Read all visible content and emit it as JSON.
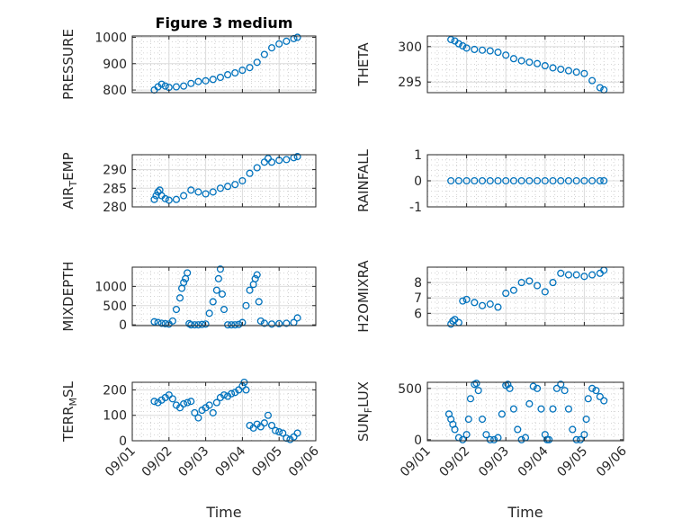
{
  "chart_data": [
    {
      "type": "scatter",
      "title": "Figure 3 medium",
      "ylabel": "PRESSURE",
      "ylim": [
        790,
        1005
      ],
      "yticks": [
        800,
        900,
        1000
      ],
      "ytick_labels": [
        "800",
        "900",
        "1000"
      ],
      "x": [
        1.6,
        1.7,
        1.8,
        1.9,
        2.0,
        2.2,
        2.4,
        2.6,
        2.8,
        3.0,
        3.2,
        3.4,
        3.6,
        3.8,
        4.0,
        4.2,
        4.4,
        4.6,
        4.8,
        5.0,
        5.2,
        5.4,
        5.5
      ],
      "y": [
        800,
        812,
        822,
        815,
        810,
        812,
        815,
        825,
        832,
        835,
        840,
        848,
        858,
        865,
        875,
        885,
        905,
        935,
        960,
        975,
        985,
        995,
        1000
      ],
      "grid": true
    },
    {
      "type": "scatter",
      "ylabel": "THETA",
      "ylim": [
        293.5,
        301.5
      ],
      "yticks": [
        295,
        300
      ],
      "ytick_labels": [
        "295",
        "300"
      ],
      "x": [
        1.6,
        1.7,
        1.8,
        1.9,
        2.0,
        2.2,
        2.4,
        2.6,
        2.8,
        3.0,
        3.2,
        3.4,
        3.6,
        3.8,
        4.0,
        4.2,
        4.4,
        4.6,
        4.8,
        5.0,
        5.2,
        5.4,
        5.5
      ],
      "y": [
        301,
        300.8,
        300.4,
        300.1,
        299.8,
        299.6,
        299.5,
        299.4,
        299.2,
        298.8,
        298.3,
        298.0,
        297.8,
        297.6,
        297.3,
        297.0,
        296.8,
        296.6,
        296.4,
        296.2,
        295.2,
        294.2,
        293.9
      ],
      "grid": true
    },
    {
      "type": "scatter",
      "ylabel_main": "AIR",
      "ylabel_sub": "T",
      "ylabel_rest": "EMP",
      "ylim": [
        280,
        294
      ],
      "yticks": [
        280,
        285,
        290
      ],
      "ytick_labels": [
        "280",
        "285",
        "290"
      ],
      "x": [
        1.6,
        1.65,
        1.7,
        1.75,
        1.8,
        1.9,
        2.0,
        2.2,
        2.4,
        2.6,
        2.8,
        3.0,
        3.2,
        3.4,
        3.6,
        3.8,
        4.0,
        4.2,
        4.4,
        4.6,
        4.7,
        4.8,
        5.0,
        5.2,
        5.4,
        5.5
      ],
      "y": [
        282,
        283,
        284,
        284.5,
        283,
        282.2,
        281.8,
        282,
        283,
        284.5,
        284,
        283.5,
        284,
        285,
        285.5,
        286,
        287,
        289,
        290.5,
        292,
        293,
        292,
        292.5,
        292.7,
        293.2,
        293.5
      ],
      "grid": true
    },
    {
      "type": "scatter",
      "ylabel": "RAINFALL",
      "ylim": [
        -1,
        1
      ],
      "yticks": [
        -1,
        0,
        1
      ],
      "ytick_labels": [
        "-1",
        "0",
        "1"
      ],
      "x": [
        1.6,
        1.8,
        2.0,
        2.2,
        2.4,
        2.6,
        2.8,
        3.0,
        3.2,
        3.4,
        3.6,
        3.8,
        4.0,
        4.2,
        4.4,
        4.6,
        4.8,
        5.0,
        5.2,
        5.4,
        5.5
      ],
      "y": [
        0,
        0,
        0,
        0,
        0,
        0,
        0,
        0,
        0,
        0,
        0,
        0,
        0,
        0,
        0,
        0,
        0,
        0,
        0,
        0,
        0
      ],
      "grid": true
    },
    {
      "type": "scatter",
      "ylabel": "MIXDEPTH",
      "ylim": [
        -20,
        1500
      ],
      "yticks": [
        0,
        500,
        1000
      ],
      "ytick_labels": [
        "0",
        "500",
        "1000"
      ],
      "x": [
        1.6,
        1.7,
        1.8,
        1.9,
        2.0,
        2.1,
        2.2,
        2.3,
        2.35,
        2.4,
        2.45,
        2.5,
        2.55,
        2.6,
        2.7,
        2.8,
        2.9,
        3.0,
        3.1,
        3.2,
        3.3,
        3.35,
        3.4,
        3.45,
        3.5,
        3.6,
        3.7,
        3.8,
        3.9,
        4.0,
        4.1,
        4.2,
        4.3,
        4.35,
        4.4,
        4.45,
        4.5,
        4.6,
        4.8,
        5.0,
        5.2,
        5.4,
        5.5
      ],
      "y": [
        80,
        60,
        40,
        30,
        20,
        100,
        400,
        700,
        950,
        1100,
        1200,
        1350,
        30,
        0,
        0,
        0,
        10,
        20,
        300,
        600,
        900,
        1200,
        1450,
        800,
        400,
        0,
        0,
        0,
        10,
        60,
        500,
        900,
        1050,
        1200,
        1300,
        600,
        100,
        40,
        20,
        30,
        40,
        60,
        180
      ],
      "grid": true
    },
    {
      "type": "scatter",
      "ylabel": "H2OMIXRA",
      "ylim": [
        5.2,
        9.0
      ],
      "yticks": [
        6,
        7,
        8
      ],
      "ytick_labels": [
        "6",
        "7",
        "8"
      ],
      "x": [
        1.6,
        1.65,
        1.7,
        1.8,
        1.9,
        2.0,
        2.2,
        2.4,
        2.6,
        2.8,
        3.0,
        3.2,
        3.4,
        3.6,
        3.8,
        4.0,
        4.2,
        4.4,
        4.6,
        4.8,
        5.0,
        5.2,
        5.4,
        5.5
      ],
      "y": [
        5.3,
        5.5,
        5.6,
        5.4,
        6.8,
        6.9,
        6.7,
        6.5,
        6.6,
        6.4,
        7.3,
        7.5,
        8.0,
        8.1,
        7.8,
        7.4,
        8.0,
        8.6,
        8.5,
        8.5,
        8.4,
        8.5,
        8.6,
        8.8
      ],
      "grid": true
    },
    {
      "type": "scatter",
      "ylabel_main": "TERR",
      "ylabel_sub": "M",
      "ylabel_rest": "SL",
      "ylim": [
        0,
        230
      ],
      "yticks": [
        0,
        100,
        200
      ],
      "ytick_labels": [
        "0",
        "100",
        "200"
      ],
      "x": [
        1.6,
        1.7,
        1.8,
        1.9,
        2.0,
        2.1,
        2.2,
        2.3,
        2.4,
        2.5,
        2.6,
        2.7,
        2.8,
        2.9,
        3.0,
        3.1,
        3.2,
        3.3,
        3.4,
        3.5,
        3.6,
        3.7,
        3.8,
        3.9,
        4.0,
        4.05,
        4.1,
        4.2,
        4.3,
        4.4,
        4.5,
        4.6,
        4.7,
        4.8,
        4.9,
        5.0,
        5.1,
        5.2,
        5.3,
        5.4,
        5.5
      ],
      "y": [
        155,
        150,
        160,
        170,
        180,
        165,
        140,
        130,
        145,
        150,
        155,
        110,
        90,
        120,
        130,
        140,
        110,
        150,
        170,
        180,
        175,
        185,
        190,
        200,
        215,
        230,
        200,
        60,
        50,
        65,
        55,
        70,
        100,
        60,
        40,
        35,
        30,
        10,
        5,
        15,
        30
      ],
      "grid": true
    },
    {
      "type": "scatter",
      "ylabel_main": "SUN",
      "ylabel_sub": "F",
      "ylabel_rest": "LUX",
      "ylim": [
        -10,
        560
      ],
      "yticks": [
        0,
        500
      ],
      "ytick_labels": [
        "0",
        "500"
      ],
      "x": [
        1.55,
        1.6,
        1.65,
        1.7,
        1.8,
        1.9,
        2.0,
        2.05,
        2.1,
        2.2,
        2.25,
        2.3,
        2.4,
        2.5,
        2.6,
        2.7,
        2.8,
        2.9,
        3.0,
        3.05,
        3.1,
        3.2,
        3.3,
        3.4,
        3.5,
        3.6,
        3.7,
        3.8,
        3.9,
        4.0,
        4.05,
        4.1,
        4.2,
        4.3,
        4.4,
        4.5,
        4.6,
        4.7,
        4.8,
        4.9,
        5.0,
        5.05,
        5.1,
        5.2,
        5.3,
        5.4,
        5.5
      ],
      "y": [
        250,
        200,
        150,
        100,
        20,
        0,
        50,
        200,
        400,
        540,
        550,
        480,
        200,
        50,
        0,
        0,
        20,
        250,
        530,
        540,
        500,
        300,
        100,
        0,
        20,
        350,
        520,
        500,
        300,
        50,
        0,
        0,
        300,
        500,
        540,
        480,
        300,
        100,
        0,
        0,
        50,
        200,
        400,
        500,
        480,
        420,
        380
      ],
      "grid": true
    }
  ],
  "x_axis": {
    "xlim": [
      1,
      6
    ],
    "ticks": [
      1,
      2,
      3,
      4,
      5,
      6
    ],
    "tick_labels": [
      "09/01",
      "09/02",
      "09/03",
      "09/04",
      "09/05",
      "09/06"
    ],
    "xlabel": "Time"
  },
  "colors": {
    "marker": "#0072BD",
    "axis": "#262626",
    "grid": "#dcdcdc",
    "minor_grid": "#c8c8c8"
  }
}
